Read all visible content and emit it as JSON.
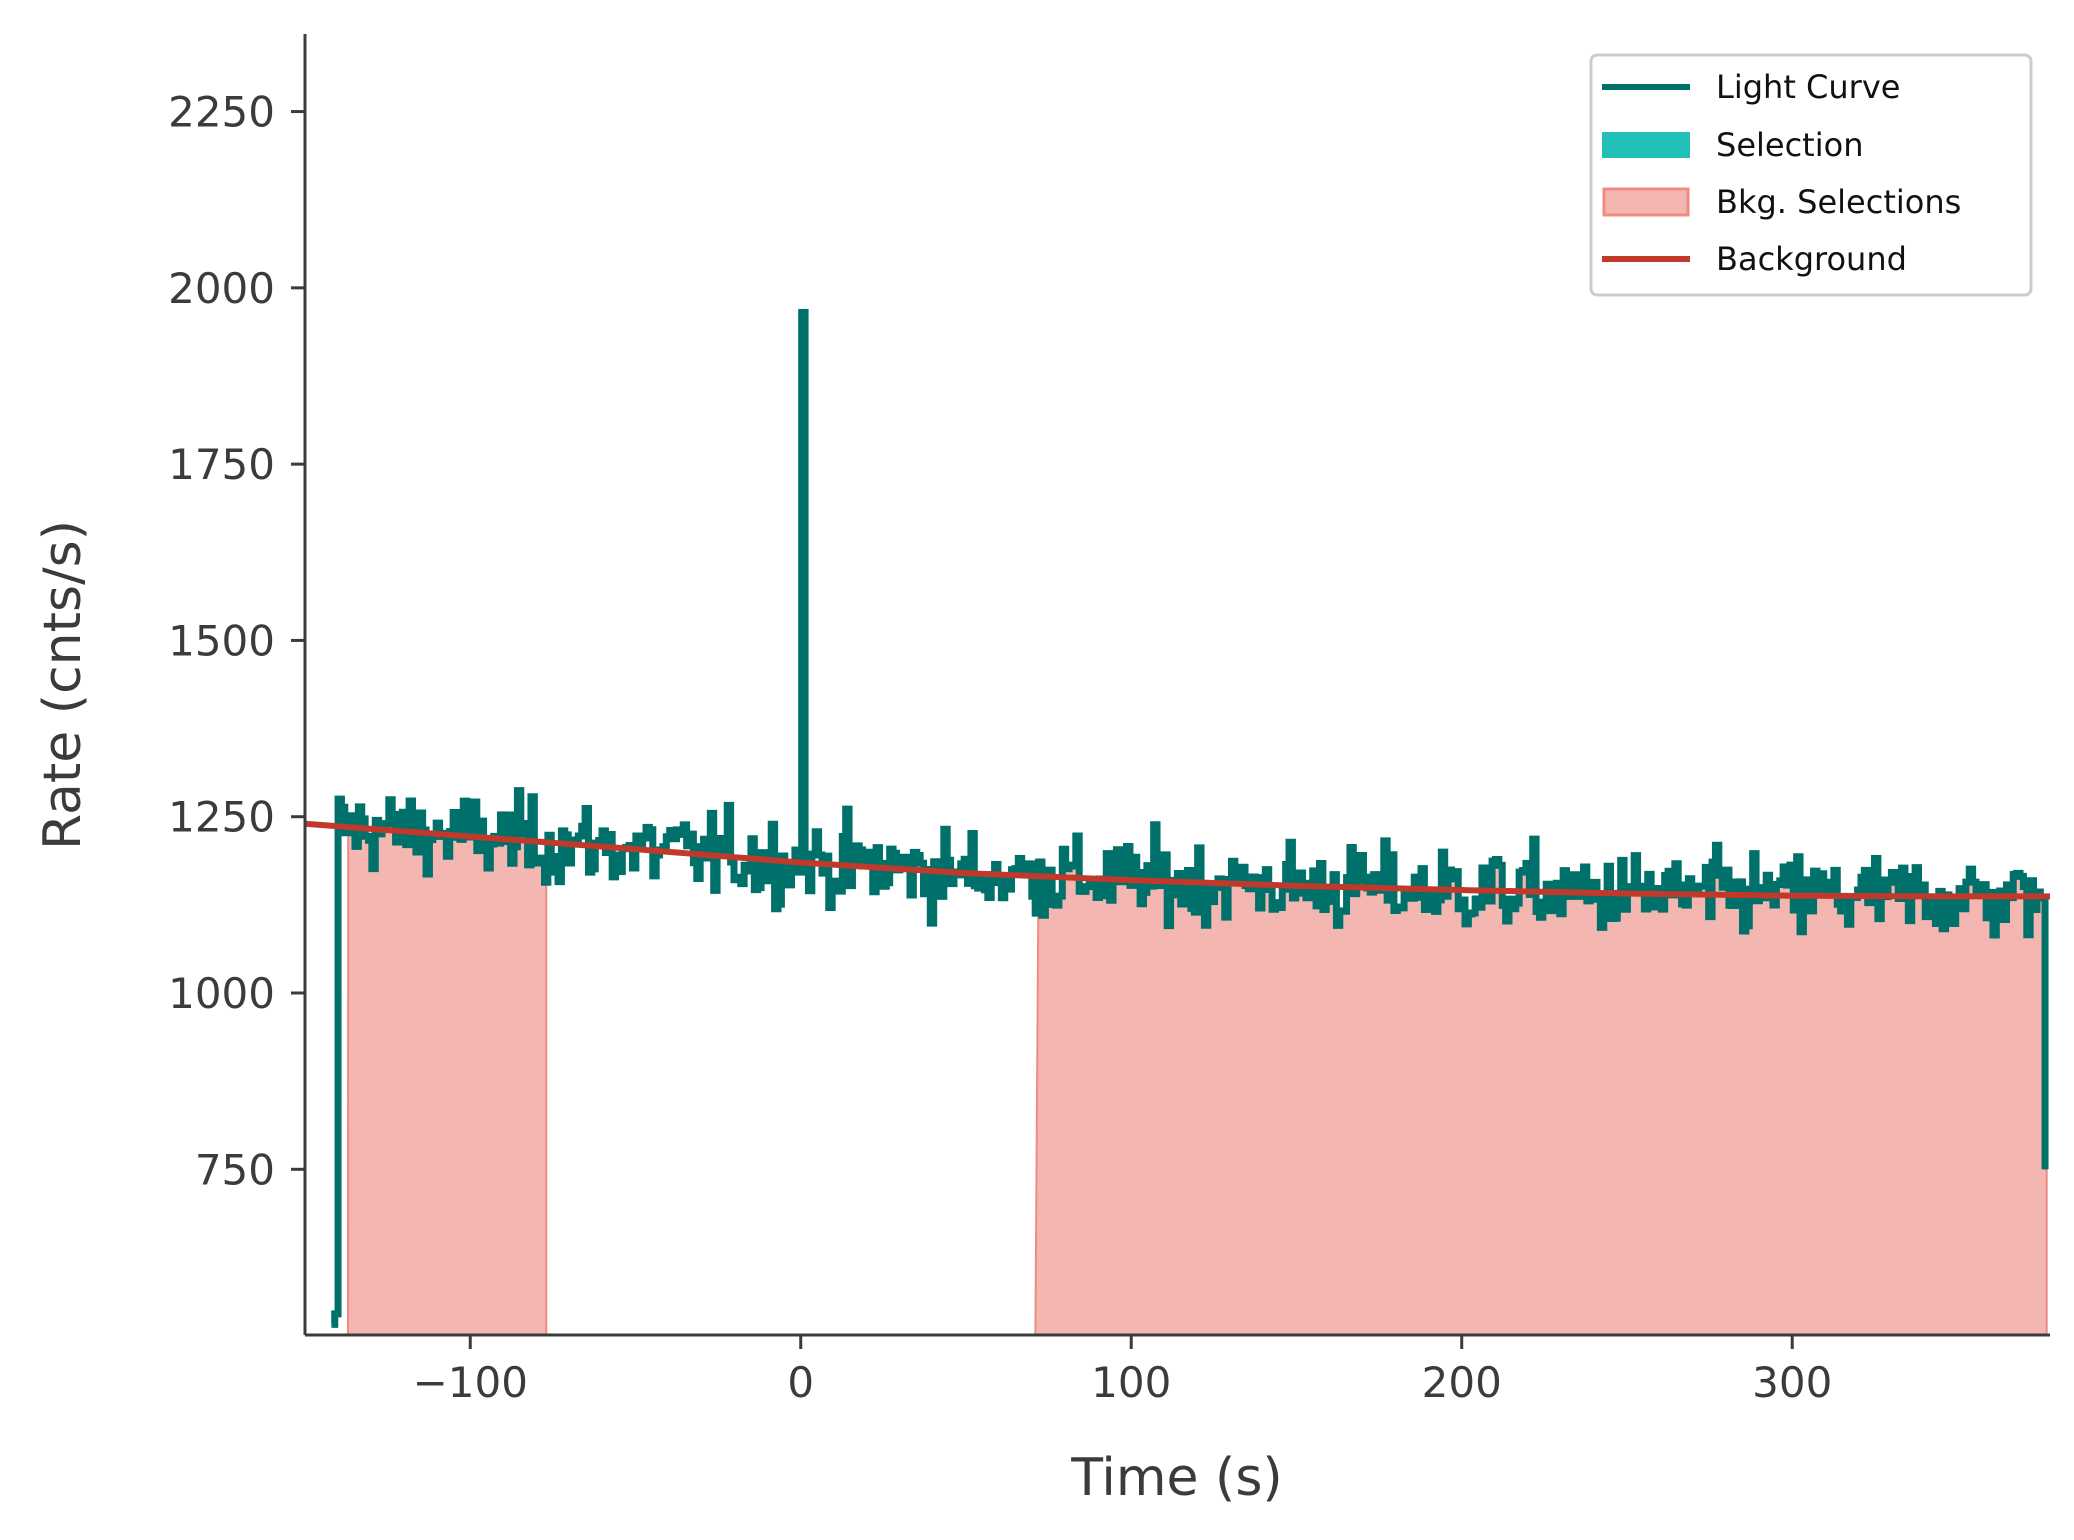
{
  "chart_data": {
    "type": "line",
    "xlabel": "Time (s)",
    "ylabel": "Rate (cnts/s)",
    "xlim": [
      -150,
      378
    ],
    "ylim": [
      515,
      2360
    ],
    "x_ticks": [
      {
        "value": -100,
        "label": "−100"
      },
      {
        "value": 0,
        "label": "0"
      },
      {
        "value": 100,
        "label": "100"
      },
      {
        "value": 200,
        "label": "200"
      },
      {
        "value": 300,
        "label": "300"
      }
    ],
    "y_ticks": [
      {
        "value": 750,
        "label": "750"
      },
      {
        "value": 1000,
        "label": "1000"
      },
      {
        "value": 1250,
        "label": "1250"
      },
      {
        "value": 1500,
        "label": "1500"
      },
      {
        "value": 1750,
        "label": "1750"
      },
      {
        "value": 2000,
        "label": "2000"
      },
      {
        "value": 2250,
        "label": "2250"
      }
    ],
    "grid": false,
    "legend_position": "top-right",
    "legend": [
      {
        "label": "Light Curve",
        "kind": "line",
        "color": "#00706a"
      },
      {
        "label": "Selection",
        "kind": "patch",
        "color": "#20c0b8"
      },
      {
        "label": "Bkg. Selections",
        "kind": "patch",
        "color": "#f4b6b0"
      },
      {
        "label": "Background",
        "kind": "line",
        "color": "#c0392b"
      }
    ],
    "light_curve": {
      "x_start": -140,
      "bin_width": 1.024,
      "pre_start_values": [
        530,
        545
      ],
      "end_drop_value": 750,
      "spike": {
        "x": 0,
        "value": 1965
      }
    },
    "bkg_selections": [
      {
        "start": -137,
        "end": -77
      },
      {
        "start": 71,
        "end": 377
      }
    ],
    "background_fit": {
      "x": [
        -150,
        -100,
        -50,
        0,
        50,
        100,
        150,
        200,
        250,
        300,
        350,
        378
      ],
      "y": [
        1240,
        1222,
        1204,
        1185,
        1170,
        1160,
        1152,
        1146,
        1141,
        1138,
        1137,
        1137
      ]
    },
    "noise_amplitude": 45
  },
  "colors": {
    "light_curve": "#00706a",
    "background": "#c0392b",
    "bkg_fill": "#f4b6b0",
    "bkg_edge": "#ee8c83",
    "axis": "#3b3b3b"
  }
}
